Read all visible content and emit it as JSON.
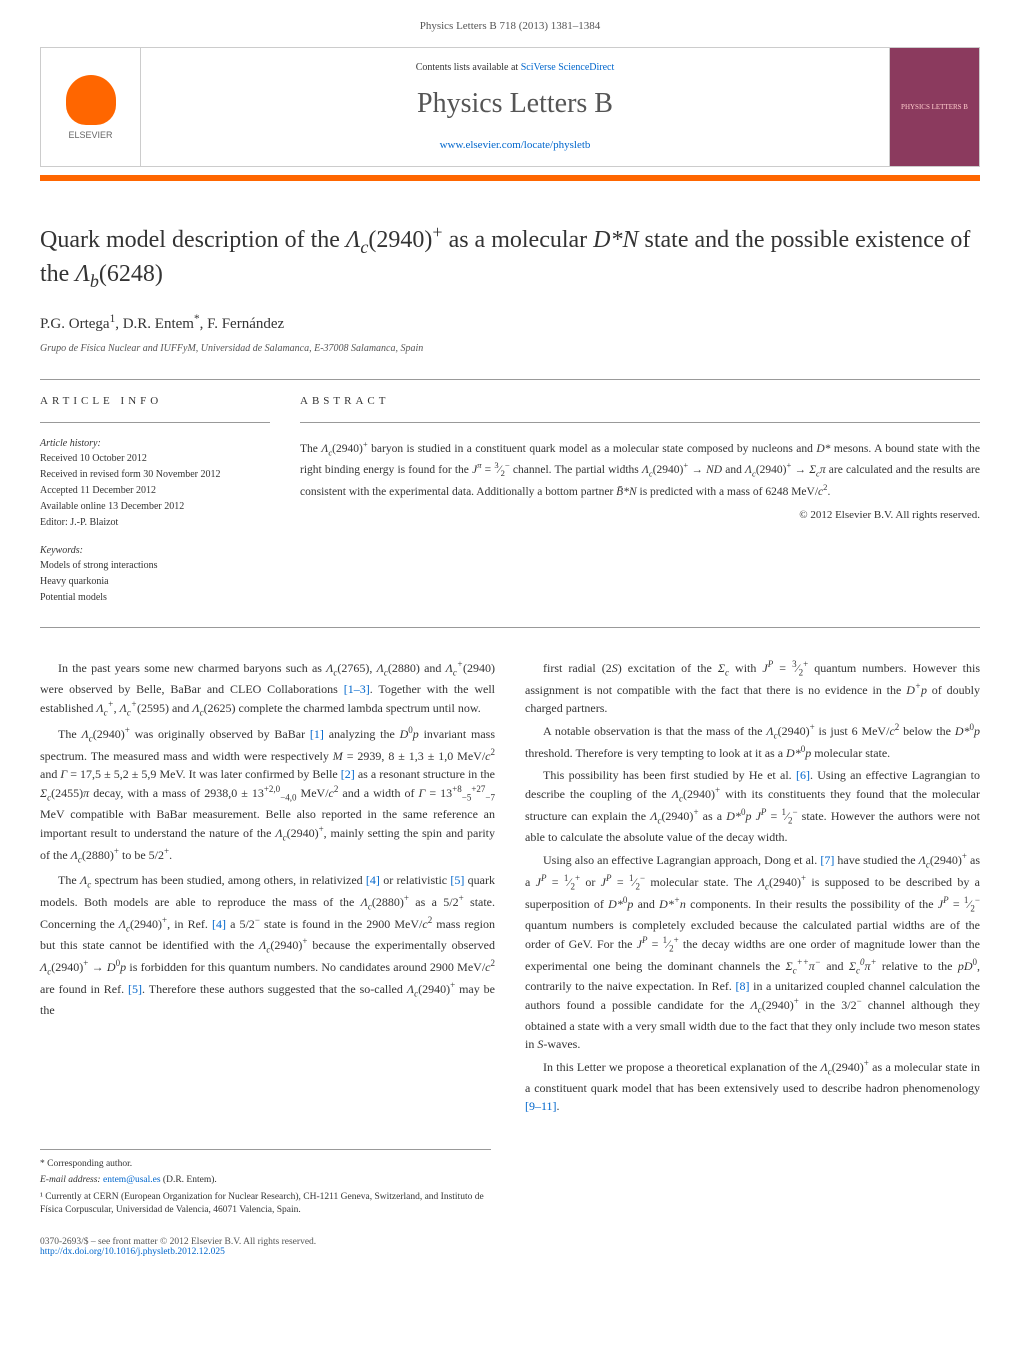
{
  "journal_ref": "Physics Letters B 718 (2013) 1381–1384",
  "header": {
    "contents_prefix": "Contents lists available at ",
    "contents_link": "SciVerse ScienceDirect",
    "journal_title": "Physics Letters B",
    "journal_url": "www.elsevier.com/locate/physletb",
    "publisher_name": "ELSEVIER",
    "cover_text": "PHYSICS LETTERS B"
  },
  "article": {
    "title_html": "Quark model description of the <i>Λ<sub>c</sub></i>(2940)<sup>+</sup> as a molecular <i>D*N</i> state and the possible existence of the <i>Λ<sub>b</sub></i>(6248)",
    "authors_html": "P.G. Ortega<sup>1</sup>, D.R. Entem<sup>*</sup>, F. Fernández",
    "affiliation": "Grupo de Física Nuclear and IUFFyM, Universidad de Salamanca, E-37008 Salamanca, Spain"
  },
  "info": {
    "heading": "ARTICLE INFO",
    "history_label": "Article history:",
    "received": "Received 10 October 2012",
    "revised": "Received in revised form 30 November 2012",
    "accepted": "Accepted 11 December 2012",
    "online": "Available online 13 December 2012",
    "editor": "Editor: J.-P. Blaizot",
    "keywords_label": "Keywords:",
    "keywords": [
      "Models of strong interactions",
      "Heavy quarkonia",
      "Potential models"
    ]
  },
  "abstract": {
    "heading": "ABSTRACT",
    "text_html": "The <i>Λ<sub>c</sub></i>(2940)<sup>+</sup> baryon is studied in a constituent quark model as a molecular state composed by nucleons and <i>D*</i> mesons. A bound state with the right binding energy is found for the <i>J<sup>π</sup></i> = <sup>3</sup>⁄<sub>2</sub><sup>−</sup> channel. The partial widths <i>Λ<sub>c</sub></i>(2940)<sup>+</sup> → <i>ND</i> and <i>Λ<sub>c</sub></i>(2940)<sup>+</sup> → <i>Σ<sub>c</sub>π</i> are calculated and the results are consistent with the experimental data. Additionally a bottom partner <i>B̄*N</i> is predicted with a mass of 6248 MeV/<i>c</i><sup>2</sup>.",
    "copyright": "© 2012 Elsevier B.V. All rights reserved."
  },
  "body": {
    "left": [
      "In the past years some new charmed baryons such as <i>Λ<sub>c</sub></i>(2765), <i>Λ<sub>c</sub></i>(2880) and <i>Λ<sub>c</sub><sup>+</sup></i>(2940) were observed by Belle, BaBar and CLEO Collaborations <a class='ref-link' href='#'>[1–3]</a>. Together with the well established <i>Λ<sub>c</sub><sup>+</sup></i>, <i>Λ<sub>c</sub><sup>+</sup></i>(2595) and <i>Λ<sub>c</sub></i>(2625) complete the charmed lambda spectrum until now.",
      "The <i>Λ<sub>c</sub></i>(2940)<sup>+</sup> was originally observed by BaBar <a class='ref-link' href='#'>[1]</a> analyzing the <i>D</i><sup>0</sup><i>p</i> invariant mass spectrum. The measured mass and width were respectively <i>M</i> = 2939, 8 ± 1,3 ± 1,0 MeV/<i>c</i><sup>2</sup> and <i>Γ</i> = 17,5 ± 5,2 ± 5,9 MeV. It was later confirmed by Belle <a class='ref-link' href='#'>[2]</a> as a resonant structure in the <i>Σ<sub>c</sub></i>(2455)<i>π</i> decay, with a mass of 2938,0 ± 13<sup>+2,0</sup><sub>−4,0</sub> MeV/<i>c</i><sup>2</sup> and a width of <i>Γ</i> = 13<sup>+8</sup><sub>−5</sub><sup>+27</sup><sub>−7</sub> MeV compatible with BaBar measurement. Belle also reported in the same reference an important result to understand the nature of the <i>Λ<sub>c</sub></i>(2940)<sup>+</sup>, mainly setting the spin and parity of the <i>Λ<sub>c</sub></i>(2880)<sup>+</sup> to be 5/2<sup>+</sup>.",
      "The <i>Λ<sub>c</sub></i> spectrum has been studied, among others, in relativized <a class='ref-link' href='#'>[4]</a> or relativistic <a class='ref-link' href='#'>[5]</a> quark models. Both models are able to reproduce the mass of the <i>Λ<sub>c</sub></i>(2880)<sup>+</sup> as a 5/2<sup>+</sup> state. Concerning the <i>Λ<sub>c</sub></i>(2940)<sup>+</sup>, in Ref. <a class='ref-link' href='#'>[4]</a> a 5/2<sup>−</sup> state is found in the 2900 MeV/<i>c</i><sup>2</sup> mass region but this state cannot be identified with the <i>Λ<sub>c</sub></i>(2940)<sup>+</sup> because the experimentally observed <i>Λ<sub>c</sub></i>(2940)<sup>+</sup> → <i>D</i><sup>0</sup><i>p</i> is forbidden for this quantum numbers. No candidates around 2900 MeV/<i>c</i><sup>2</sup> are found in Ref. <a class='ref-link' href='#'>[5]</a>. Therefore these authors suggested that the so-called <i>Λ<sub>c</sub></i>(2940)<sup>+</sup> may be the"
    ],
    "right": [
      "first radial (2<i>S</i>) excitation of the <i>Σ<sub>c</sub></i> with <i>J<sup>P</sup></i> = <sup>3</sup>⁄<sub>2</sub><sup>+</sup> quantum numbers. However this assignment is not compatible with the fact that there is no evidence in the <i>D<sup>+</sup>p</i> of doubly charged partners.",
      "A notable observation is that the mass of the <i>Λ<sub>c</sub></i>(2940)<sup>+</sup> is just 6 MeV/<i>c</i><sup>2</sup> below the <i>D*</i><sup>0</sup><i>p</i> threshold. Therefore is very tempting to look at it as a <i>D*</i><sup>0</sup><i>p</i> molecular state.",
      "This possibility has been first studied by He et al. <a class='ref-link' href='#'>[6]</a>. Using an effective Lagrangian to describe the coupling of the <i>Λ<sub>c</sub></i>(2940)<sup>+</sup> with its constituents they found that the molecular structure can explain the <i>Λ<sub>c</sub></i>(2940)<sup>+</sup> as a <i>D*</i><sup>0</sup><i>p</i> <i>J<sup>P</sup></i> = <sup>1</sup>⁄<sub>2</sub><sup>−</sup> state. However the authors were not able to calculate the absolute value of the decay width.",
      "Using also an effective Lagrangian approach, Dong et al. <a class='ref-link' href='#'>[7]</a> have studied the <i>Λ<sub>c</sub></i>(2940)<sup>+</sup> as a <i>J<sup>P</sup></i> = <sup>1</sup>⁄<sub>2</sub><sup>+</sup> or <i>J<sup>P</sup></i> = <sup>1</sup>⁄<sub>2</sub><sup>−</sup> molecular state. The <i>Λ<sub>c</sub></i>(2940)<sup>+</sup> is supposed to be described by a superposition of <i>D*</i><sup>0</sup><i>p</i> and <i>D*<sup>+</sup>n</i> components. In their results the possibility of the <i>J<sup>P</sup></i> = <sup>1</sup>⁄<sub>2</sub><sup>−</sup> quantum numbers is completely excluded because the calculated partial widths are of the order of GeV. For the <i>J<sup>P</sup></i> = <sup>1</sup>⁄<sub>2</sub><sup>+</sup> the decay widths are one order of magnitude lower than the experimental one being the dominant channels the <i>Σ<sub>c</sub><sup>++</sup>π<sup>−</sup></i> and <i>Σ<sub>c</sub><sup>0</sup>π<sup>+</sup></i> relative to the <i>pD</i><sup>0</sup>, contrarily to the naive expectation. In Ref. <a class='ref-link' href='#'>[8]</a> in a unitarized coupled channel calculation the authors found a possible candidate for the <i>Λ<sub>c</sub></i>(2940)<sup>+</sup> in the 3/2<sup>−</sup> channel although they obtained a state with a very small width due to the fact that they only include two meson states in <i>S</i>-waves.",
      "In this Letter we propose a theoretical explanation of the <i>Λ<sub>c</sub></i>(2940)<sup>+</sup> as a molecular state in a constituent quark model that has been extensively used to describe hadron phenomenology <a class='ref-link' href='#'>[9–11]</a>."
    ]
  },
  "footnotes": {
    "corresponding": "* Corresponding author.",
    "email_label": "E-mail address: ",
    "email": "entem@usal.es",
    "email_who": " (D.R. Entem).",
    "note1": "¹ Currently at CERN (European Organization for Nuclear Research), CH-1211 Geneva, Switzerland, and Instituto de Física Corpuscular, Universidad de Valencia, 46071 Valencia, Spain."
  },
  "footer": {
    "issn": "0370-2693/$ – see front matter © 2012 Elsevier B.V. All rights reserved.",
    "doi": "http://dx.doi.org/10.1016/j.physletb.2012.12.025"
  },
  "colors": {
    "accent": "#ff6600",
    "link": "#0066cc",
    "text": "#333333",
    "cover_bg": "#8b3a5e"
  }
}
